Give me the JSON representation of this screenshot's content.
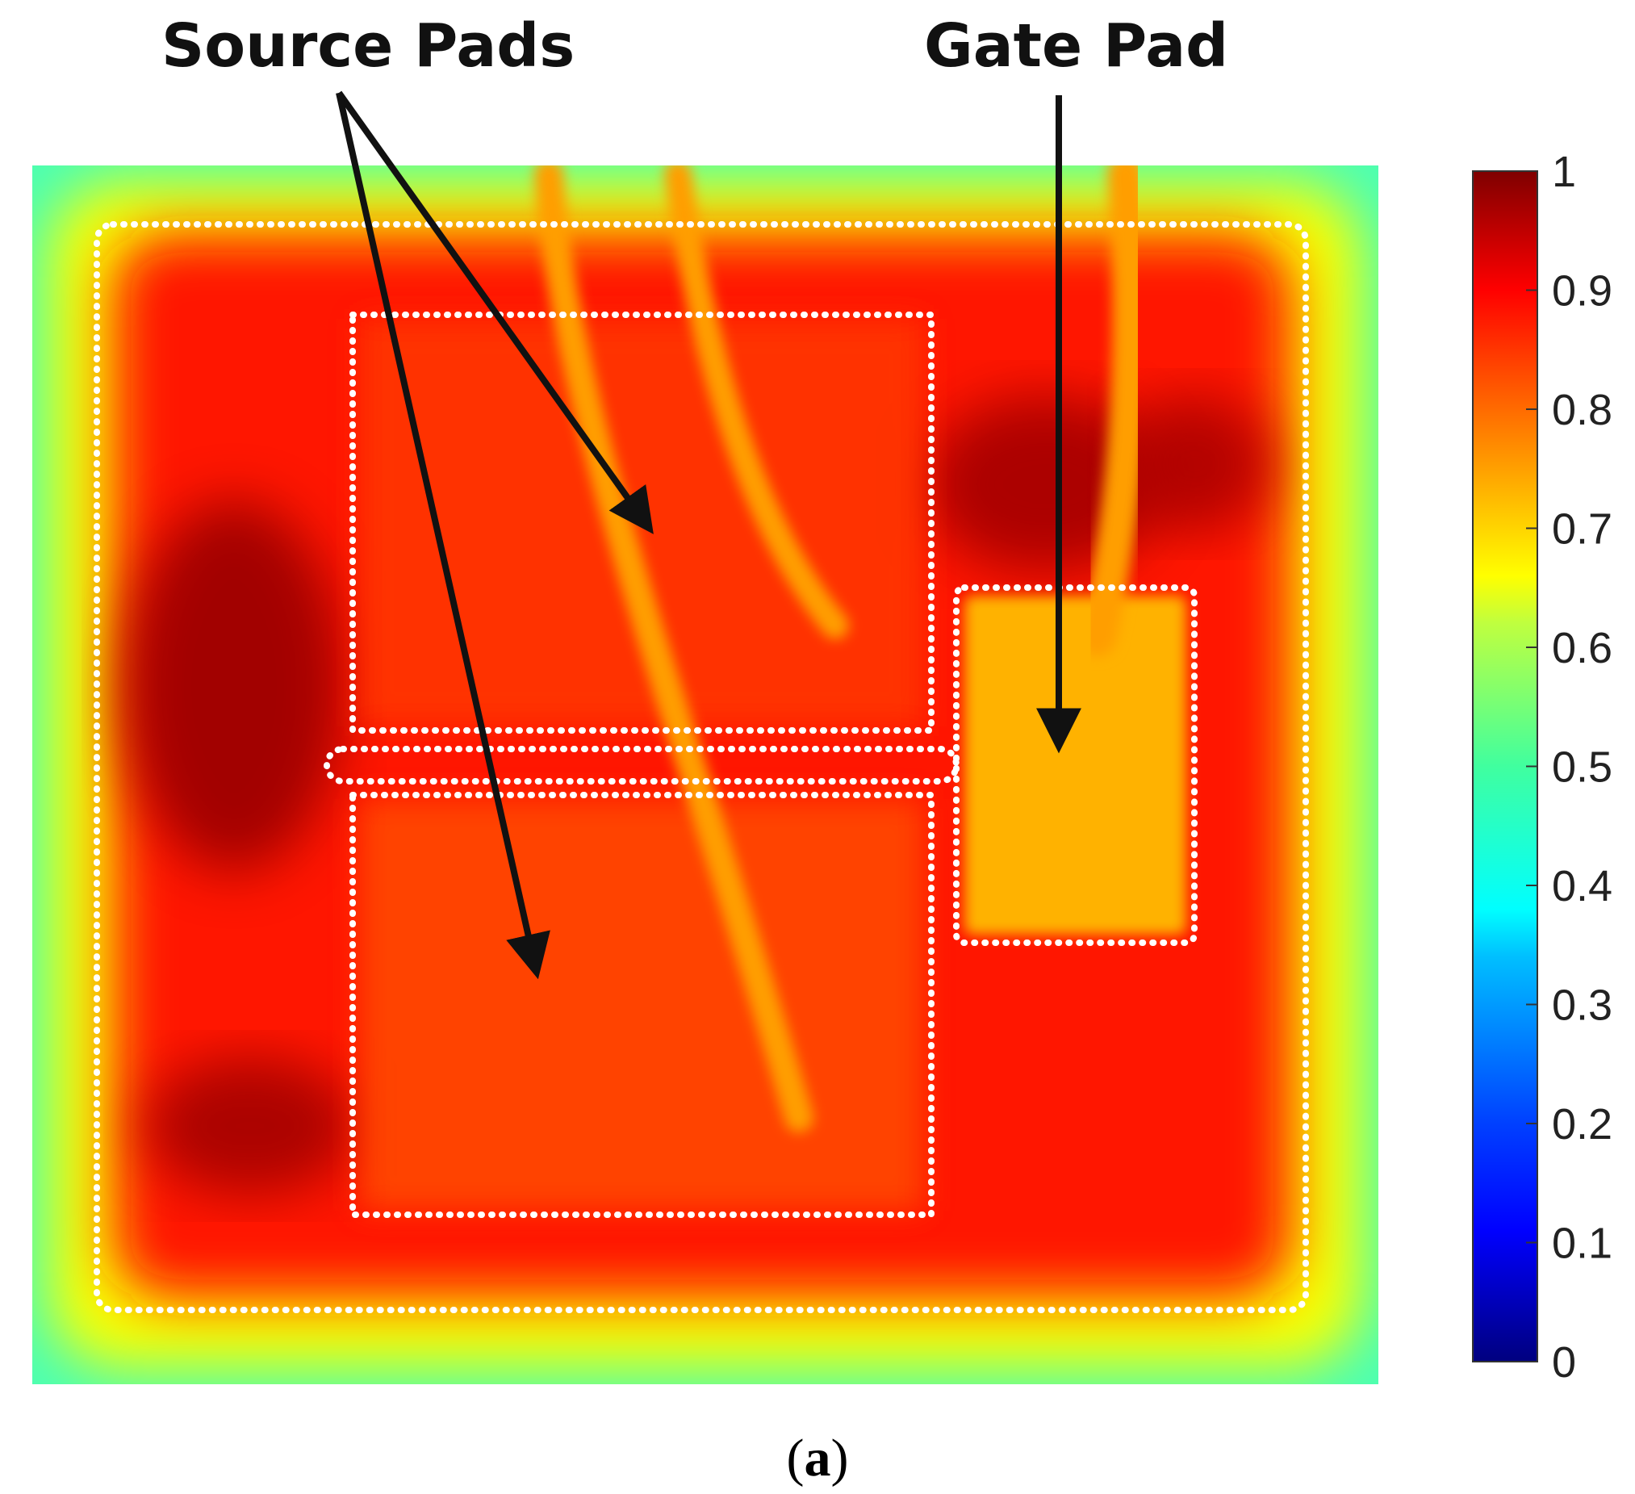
{
  "chart_data": {
    "type": "heatmap",
    "title": "",
    "xlabel": "",
    "ylabel": "",
    "colorbar": {
      "min": 0,
      "max": 1,
      "ticks": [
        "0",
        "0.1",
        "0.2",
        "0.3",
        "0.4",
        "0.5",
        "0.6",
        "0.7",
        "0.8",
        "0.9",
        "1"
      ],
      "colormap": "jet"
    },
    "annotations": [
      {
        "text": "Source Pads",
        "points_to": "two source pads (upper and lower source regions)"
      },
      {
        "text": "Gate Pad",
        "points_to": "gate pad region"
      }
    ],
    "regions": [
      {
        "region": "die edge",
        "value": 0.45
      },
      {
        "region": "outer ring",
        "value": 0.62
      },
      {
        "region": "die interior",
        "value": 0.85
      },
      {
        "region": "hot spot left",
        "value": 0.97
      },
      {
        "region": "hot spot top-right",
        "value": 0.96
      },
      {
        "region": "source pad upper",
        "value": 0.82
      },
      {
        "region": "source pad lower",
        "value": 0.8
      },
      {
        "region": "gate pad",
        "value": 0.7
      },
      {
        "region": "bond wire traces",
        "value": 0.72
      }
    ]
  },
  "caption": {
    "open": "(",
    "label": "a",
    "close": ")"
  },
  "colors": {
    "jet": [
      "#00007f",
      "#0000ff",
      "#007fff",
      "#00ffff",
      "#7fff7f",
      "#ffff00",
      "#ff7f00",
      "#ff0000",
      "#7f0000"
    ],
    "outline": "#ffffff",
    "arrow": "#111111"
  }
}
